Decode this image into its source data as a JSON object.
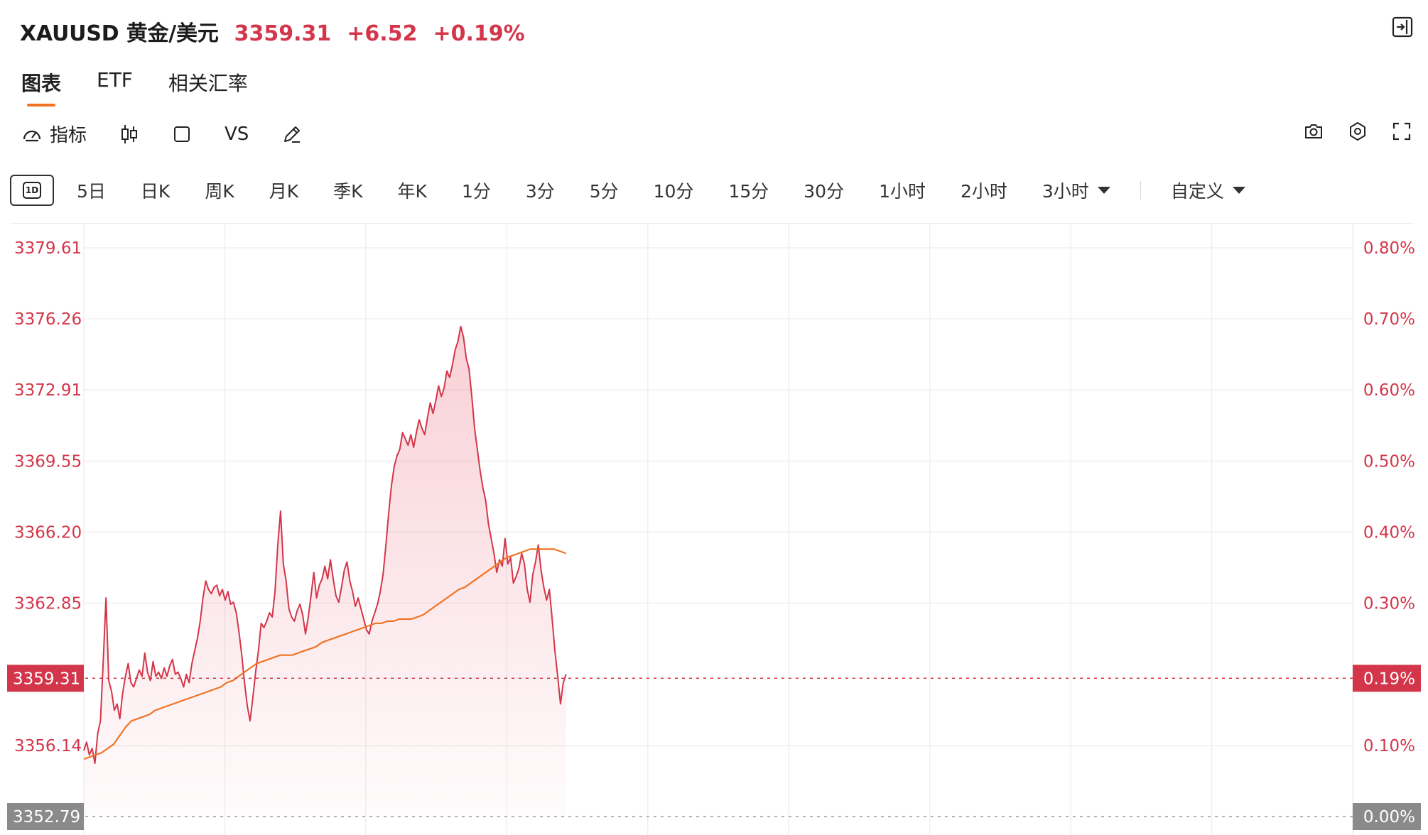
{
  "header": {
    "symbol": "XAUUSD 黄金/美元",
    "price": "3359.31",
    "change": "+6.52",
    "change_pct": "+0.19%"
  },
  "tabs": [
    {
      "label": "图表",
      "active": true
    },
    {
      "label": "ETF",
      "active": false
    },
    {
      "label": "相关汇率",
      "active": false
    }
  ],
  "toolbar": {
    "indicators_label": "指标",
    "compare_label": "VS"
  },
  "periods": {
    "intraday_badge": "1D",
    "items": [
      "5日",
      "日K",
      "周K",
      "月K",
      "季K",
      "年K",
      "1分",
      "3分",
      "5分",
      "10分",
      "15分",
      "30分",
      "1小时",
      "2小时"
    ],
    "dropdown_3h": "3小时",
    "custom": "自定义"
  },
  "colors": {
    "up": "#d3364a",
    "ma_line": "#f07324",
    "grid": "#efefef",
    "prev_close_badge": "#8a8a8a"
  },
  "chart_data": {
    "type": "area",
    "ylim": [
      3352.79,
      3379.61
    ],
    "y_ticks_left": [
      "3379.61",
      "3376.26",
      "3372.91",
      "3369.55",
      "3366.20",
      "3362.85",
      "3356.14"
    ],
    "y_ticks_right": [
      "0.80%",
      "0.70%",
      "0.60%",
      "0.50%",
      "0.40%",
      "0.30%",
      "0.10%"
    ],
    "current_price_label": "3359.31",
    "current_pct_label": "0.19%",
    "prev_close_label": "3352.79",
    "prev_close_pct_label": "0.00%",
    "session_progress": 0.38,
    "series": [
      {
        "values": [
          3355.9,
          3356.3,
          3355.7,
          3356.0,
          3355.3,
          3356.7,
          3357.3,
          3360.1,
          3363.1,
          3359.2,
          3358.7,
          3357.8,
          3358.1,
          3357.4,
          3358.6,
          3359.4,
          3360.0,
          3359.1,
          3358.9,
          3359.3,
          3359.7,
          3359.4,
          3360.5,
          3359.6,
          3359.2,
          3360.1,
          3359.4,
          3359.6,
          3359.3,
          3359.8,
          3359.4,
          3359.9,
          3360.2,
          3359.5,
          3359.6,
          3359.3,
          3358.9,
          3359.5,
          3359.1,
          3360.0,
          3360.6,
          3361.2,
          3362.0,
          3363.1,
          3363.9,
          3363.5,
          3363.3,
          3363.6,
          3363.7,
          3363.2,
          3363.5,
          3363.0,
          3363.4,
          3362.8,
          3362.9,
          3362.4,
          3361.5,
          3360.4,
          3359.1,
          3358.0,
          3357.3,
          3358.4,
          3359.6,
          3360.6,
          3361.9,
          3361.7,
          3362.0,
          3362.4,
          3362.2,
          3363.4,
          3365.6,
          3367.2,
          3364.7,
          3363.9,
          3362.6,
          3362.2,
          3362.0,
          3362.5,
          3362.8,
          3362.3,
          3361.4,
          3362.2,
          3363.2,
          3364.3,
          3363.1,
          3363.7,
          3364.0,
          3364.6,
          3364.0,
          3364.9,
          3364.0,
          3363.2,
          3362.9,
          3363.6,
          3364.4,
          3364.8,
          3363.9,
          3363.4,
          3362.7,
          3363.1,
          3362.6,
          3362.1,
          3361.6,
          3361.4,
          3362.0,
          3362.4,
          3362.8,
          3363.4,
          3364.2,
          3365.6,
          3367.1,
          3368.4,
          3369.3,
          3369.8,
          3370.1,
          3370.9,
          3370.6,
          3370.3,
          3370.8,
          3370.2,
          3370.9,
          3371.5,
          3371.1,
          3370.8,
          3371.6,
          3372.3,
          3371.8,
          3372.4,
          3373.1,
          3372.6,
          3373.0,
          3373.8,
          3373.5,
          3374.1,
          3374.8,
          3375.2,
          3375.9,
          3375.4,
          3374.4,
          3373.9,
          3372.6,
          3371.1,
          3370.1,
          3369.1,
          3368.3,
          3367.7,
          3366.6,
          3365.9,
          3365.2,
          3364.3,
          3364.9,
          3364.6,
          3365.9,
          3364.7,
          3365.0,
          3363.8,
          3364.1,
          3364.5,
          3365.2,
          3364.7,
          3363.5,
          3362.9,
          3364.2,
          3364.8,
          3365.6,
          3364.4,
          3363.6,
          3363.0,
          3363.5,
          3362.1,
          3360.6,
          3359.4,
          3358.1,
          3359.1,
          3359.5
        ]
      },
      {
        "name": "MA",
        "values": [
          3355.5,
          3355.6,
          3355.7,
          3355.8,
          3356.0,
          3356.2,
          3356.6,
          3357.0,
          3357.3,
          3357.4,
          3357.5,
          3357.6,
          3357.8,
          3357.9,
          3358.0,
          3358.1,
          3358.2,
          3358.3,
          3358.4,
          3358.5,
          3358.6,
          3358.7,
          3358.8,
          3358.9,
          3359.1,
          3359.2,
          3359.4,
          3359.6,
          3359.8,
          3360.0,
          3360.1,
          3360.2,
          3360.3,
          3360.4,
          3360.4,
          3360.4,
          3360.5,
          3360.6,
          3360.7,
          3360.8,
          3361.0,
          3361.1,
          3361.2,
          3361.3,
          3361.4,
          3361.5,
          3361.6,
          3361.7,
          3361.8,
          3361.9,
          3361.9,
          3362.0,
          3362.0,
          3362.1,
          3362.1,
          3362.1,
          3362.2,
          3362.3,
          3362.5,
          3362.7,
          3362.9,
          3363.1,
          3363.3,
          3363.5,
          3363.6,
          3363.8,
          3364.0,
          3364.2,
          3364.4,
          3364.6,
          3364.8,
          3365.0,
          3365.1,
          3365.2,
          3365.3,
          3365.4,
          3365.4,
          3365.4,
          3365.4,
          3365.4,
          3365.3,
          3365.2
        ]
      }
    ]
  }
}
